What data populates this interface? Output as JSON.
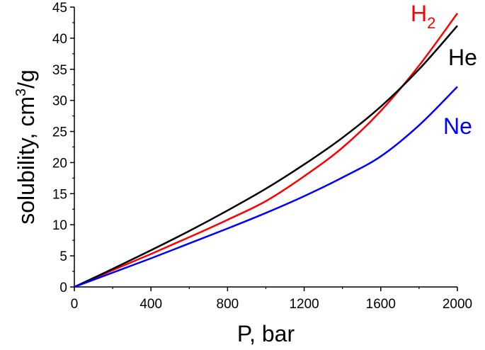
{
  "chart_data": {
    "type": "line",
    "xlabel": "P, bar",
    "ylabel_parts": {
      "main": "solubility, cm",
      "sup": "3",
      "tail": "/g"
    },
    "xlim": [
      0,
      2000
    ],
    "ylim": [
      0,
      45
    ],
    "xticks": [
      0,
      400,
      800,
      1200,
      1600,
      2000
    ],
    "yticks": [
      0,
      5,
      10,
      15,
      20,
      25,
      30,
      35,
      40,
      45
    ],
    "grid": false,
    "series": [
      {
        "name": "H2",
        "label_main": "H",
        "label_sub": "2",
        "color": "#ff0000",
        "x": [
          0,
          200,
          400,
          600,
          800,
          1000,
          1200,
          1400,
          1600,
          1800,
          2000
        ],
        "y": [
          0,
          2.7,
          5.3,
          8.0,
          10.8,
          13.8,
          17.8,
          22.4,
          28.3,
          35.6,
          44.0
        ]
      },
      {
        "name": "He",
        "label_main": "He",
        "label_sub": "",
        "color": "#000000",
        "x": [
          0,
          200,
          400,
          600,
          800,
          1000,
          1200,
          1400,
          1600,
          1800,
          2000
        ],
        "y": [
          0,
          2.9,
          5.9,
          9.0,
          12.3,
          15.8,
          19.7,
          24.0,
          29.0,
          35.0,
          42.0
        ]
      },
      {
        "name": "Ne",
        "label_main": "Ne",
        "label_sub": "",
        "color": "#0000ff",
        "x": [
          0,
          200,
          400,
          600,
          800,
          1000,
          1200,
          1400,
          1600,
          1800,
          2000
        ],
        "y": [
          0,
          2.3,
          4.6,
          7.0,
          9.4,
          11.9,
          14.6,
          17.6,
          21.0,
          26.0,
          32.2
        ]
      }
    ]
  }
}
